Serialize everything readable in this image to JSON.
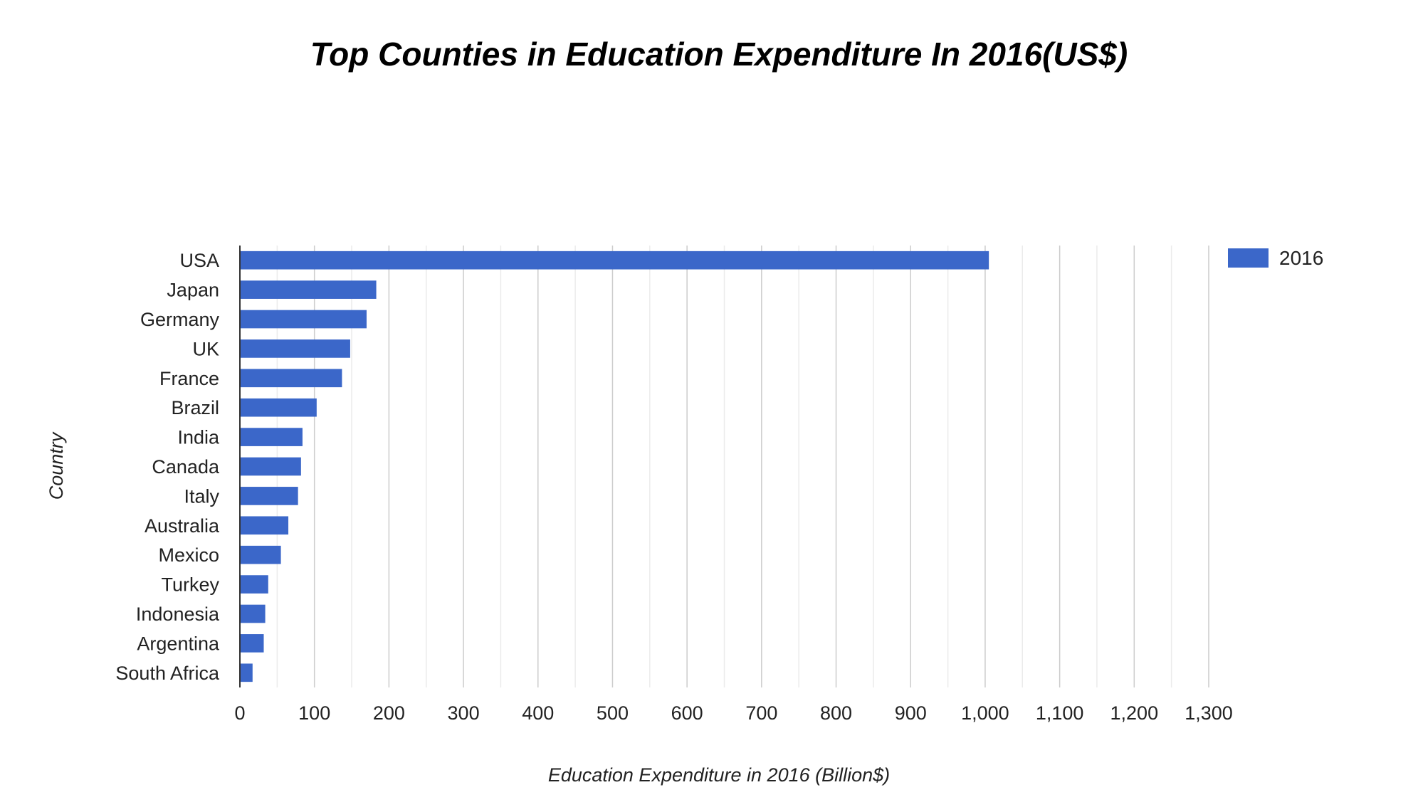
{
  "chart_data": {
    "type": "bar",
    "orientation": "horizontal",
    "title": "Top Counties in Education Expenditure In 2016(US$)",
    "xlabel": "Education Expenditure in 2016 (Billion$)",
    "ylabel": "Country",
    "categories": [
      "USA",
      "Japan",
      "Germany",
      "UK",
      "France",
      "Brazil",
      "India",
      "Canada",
      "Italy",
      "Australia",
      "Mexico",
      "Turkey",
      "Indonesia",
      "Argentina",
      "South Africa"
    ],
    "series": [
      {
        "name": "2016",
        "color": "#3b67c9",
        "values": [
          1005,
          183,
          170,
          148,
          137,
          103,
          84,
          82,
          78,
          65,
          55,
          38,
          34,
          32,
          17
        ]
      }
    ],
    "xlim": [
      0,
      1300
    ],
    "major_ticks": [
      0,
      100,
      200,
      300,
      400,
      500,
      600,
      700,
      800,
      900,
      1000,
      1100,
      1200,
      1300
    ],
    "tick_labels": [
      "0",
      "100",
      "200",
      "300",
      "400",
      "500",
      "600",
      "700",
      "800",
      "900",
      "1,000",
      "1,100",
      "1,200",
      "1,300"
    ],
    "grid": true,
    "legend_position": "top-right",
    "colors": {
      "bar": "#3b67c9",
      "major_grid": "#cccccc",
      "minor_grid": "#ebebeb",
      "axis": "#333333",
      "text": "#222222",
      "title": "#000000"
    }
  }
}
